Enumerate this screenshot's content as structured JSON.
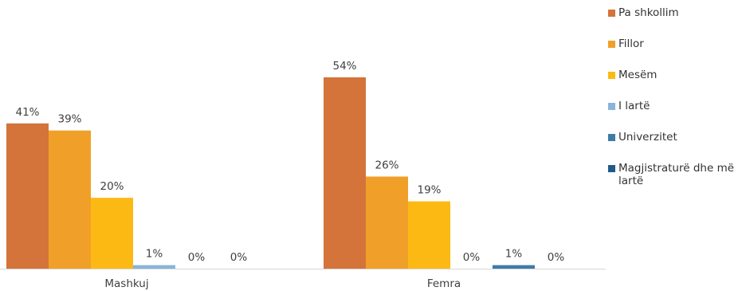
{
  "chart_data": {
    "type": "bar",
    "categories": [
      "Mashkuj",
      "Femra"
    ],
    "series": [
      {
        "name": "Pa shkollim",
        "color": "#D4733A",
        "values": [
          41,
          54
        ],
        "labels": [
          "41%",
          "54%"
        ]
      },
      {
        "name": "Fillor",
        "color": "#F0A029",
        "values": [
          39,
          26
        ],
        "labels": [
          "39%",
          "26%"
        ]
      },
      {
        "name": "Mesëm",
        "color": "#FDB913",
        "values": [
          20,
          19
        ],
        "labels": [
          "20%",
          "19%"
        ]
      },
      {
        "name": "I lartë",
        "color": "#8AB4D9",
        "values": [
          1,
          0
        ],
        "labels": [
          "1%",
          "0%"
        ]
      },
      {
        "name": "Univerzitet",
        "color": "#3E7CA8",
        "values": [
          0,
          1
        ],
        "labels": [
          "0%",
          "1%"
        ]
      },
      {
        "name": "Magjistraturë dhe më lartë",
        "color": "#1F5A8A",
        "values": [
          0,
          0
        ],
        "labels": [
          "0%",
          "0%"
        ]
      }
    ],
    "legend_position": "right",
    "grid": false
  }
}
